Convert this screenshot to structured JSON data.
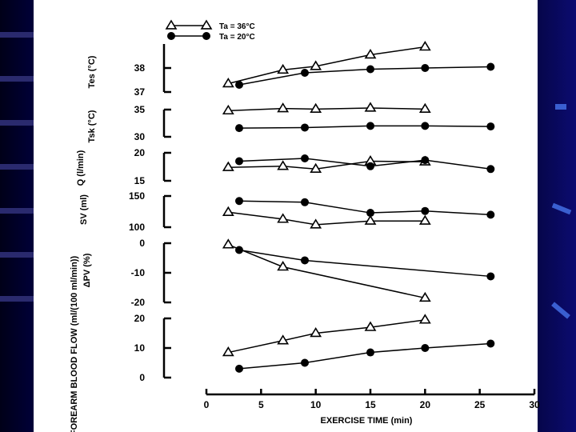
{
  "slide": {
    "background": "#0a0a6a",
    "paper": "#ffffff",
    "accent": "#3a5fd0",
    "left_stripe_count": 7,
    "right_deco_icons": [
      "bar-deco-icon",
      "slash-deco-icon",
      "slash-deco-icon"
    ]
  },
  "chart_data": {
    "type": "line",
    "title": "",
    "xlabel": "EXERCISE TIME (min)",
    "xlim": [
      0,
      30
    ],
    "x_ticks": [
      0,
      5,
      10,
      15,
      20,
      25,
      30
    ],
    "x_tick_labels": [
      "0",
      "5",
      "10",
      "15",
      "20",
      "25",
      "30"
    ],
    "legend": {
      "placement": "top",
      "entries": [
        {
          "marker": "open-triangle",
          "label": "Ta = 36°C"
        },
        {
          "marker": "filled-circle",
          "label": "Ta = 20°C"
        }
      ]
    },
    "panels": [
      {
        "id": "tes",
        "ylabel": "Tes (°C)",
        "ylim": [
          37,
          39
        ],
        "y_ticks": [
          {
            "value": 37,
            "label": "37"
          },
          {
            "value": 38,
            "label": "38"
          }
        ],
        "series": [
          {
            "name": "Ta = 36°C",
            "marker": "triangle",
            "x": [
              2,
              7,
              10,
              15,
              20
            ],
            "y": [
              37.35,
              37.92,
              38.07,
              38.55,
              38.88
            ]
          },
          {
            "name": "Ta = 20°C",
            "marker": "circle",
            "x": [
              3,
              9,
              15,
              20,
              26
            ],
            "y": [
              37.3,
              37.8,
              37.95,
              38.0,
              38.05
            ]
          }
        ]
      },
      {
        "id": "tsk",
        "ylabel": "Tsk (°C)",
        "ylim": [
          30,
          35
        ],
        "y_ticks": [
          {
            "value": 35,
            "label": "35"
          },
          {
            "value": 30,
            "label": "30"
          }
        ],
        "series": [
          {
            "name": "Ta = 36°C",
            "marker": "triangle",
            "x": [
              2,
              7,
              10,
              15,
              20
            ],
            "y": [
              34.8,
              35.2,
              35.1,
              35.3,
              35.1
            ]
          },
          {
            "name": "Ta = 20°C",
            "marker": "circle",
            "x": [
              3,
              9,
              15,
              20,
              26
            ],
            "y": [
              31.6,
              31.7,
              32.0,
              32.0,
              31.9
            ]
          }
        ]
      },
      {
        "id": "q",
        "ylabel": "Q (l/min)",
        "ylim": [
          15,
          20
        ],
        "y_ticks": [
          {
            "value": 20,
            "label": "20"
          },
          {
            "value": 15,
            "label": "15"
          }
        ],
        "series": [
          {
            "name": "Ta = 36°C",
            "marker": "triangle",
            "x": [
              2,
              7,
              10,
              15,
              20
            ],
            "y": [
              17.4,
              17.6,
              17.1,
              18.5,
              18.4
            ]
          },
          {
            "name": "Ta = 20°C",
            "marker": "circle",
            "x": [
              3,
              9,
              15,
              20,
              26
            ],
            "y": [
              18.5,
              19.0,
              17.6,
              18.7,
              17.1
            ]
          }
        ]
      },
      {
        "id": "sv",
        "ylabel": "SV (ml)",
        "ylim": [
          100,
          150
        ],
        "y_ticks": [
          {
            "value": 150,
            "label": "150"
          },
          {
            "value": 100,
            "label": "100"
          }
        ],
        "series": [
          {
            "name": "Ta = 36°C",
            "marker": "triangle",
            "x": [
              2,
              7,
              10,
              15,
              20
            ],
            "y": [
              124,
              113,
              104,
              110,
              110
            ]
          },
          {
            "name": "Ta = 20°C",
            "marker": "circle",
            "x": [
              3,
              9,
              15,
              20,
              26
            ],
            "y": [
              142,
              140,
              123,
              126,
              120
            ]
          }
        ]
      },
      {
        "id": "dpv",
        "ylabel": "ΔPV (%)",
        "ylim": [
          -20,
          0
        ],
        "y_ticks": [
          {
            "value": 0,
            "label": "0"
          },
          {
            "value": -10,
            "label": "-10"
          },
          {
            "value": -20,
            "label": "-20"
          }
        ],
        "series": [
          {
            "name": "Ta = 36°C",
            "marker": "triangle",
            "x": [
              2,
              7,
              20
            ],
            "y": [
              -0.5,
              -8,
              -18.5
            ]
          },
          {
            "name": "Ta = 20°C",
            "marker": "circle",
            "x": [
              3,
              9,
              26
            ],
            "y": [
              -2.3,
              -5.8,
              -11.2
            ]
          }
        ]
      },
      {
        "id": "forearm",
        "ylabel": "FOREARM BLOOD FLOW (ml/(100 ml/min))",
        "ylim": [
          0,
          20
        ],
        "y_ticks": [
          {
            "value": 20,
            "label": "20"
          },
          {
            "value": 10,
            "label": "10"
          },
          {
            "value": 0,
            "label": "0"
          }
        ],
        "series": [
          {
            "name": "Ta = 36°C",
            "marker": "triangle",
            "x": [
              2,
              7,
              10,
              15,
              20
            ],
            "y": [
              8.5,
              12.5,
              15,
              17,
              19.5
            ]
          },
          {
            "name": "Ta = 20°C",
            "marker": "circle",
            "x": [
              3,
              9,
              15,
              20,
              26
            ],
            "y": [
              3,
              5,
              8.5,
              10,
              11.5
            ]
          }
        ]
      }
    ]
  }
}
